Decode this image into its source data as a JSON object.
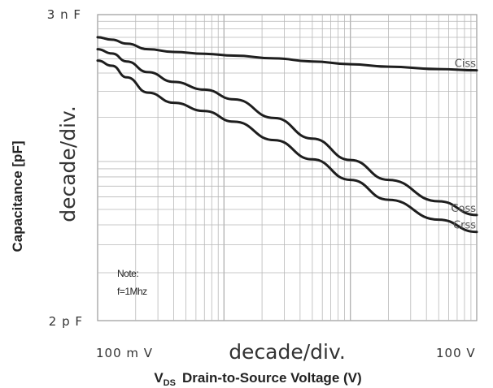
{
  "chart_data": {
    "type": "line",
    "x_scale": "log",
    "y_scale": "log",
    "xlim": [
      0.1,
      100
    ],
    "ylim_labels": {
      "bottom": "2 p F",
      "top": "3 n F"
    },
    "x_tick_labels": [
      "100 m V",
      "100  V"
    ],
    "y_tick_labels": [
      "2 p F",
      "3 n F"
    ],
    "x_division_label": "decade/div.",
    "y_division_label": "decade/div.",
    "xlabel_prefix": "V",
    "xlabel_subscript": "DS",
    "xlabel_text": "Drain-to-Source Voltage (V)",
    "ylabel": "Capacitance [pF]",
    "grid": true,
    "note_lines": [
      "Note:",
      "f=1Mhz"
    ],
    "series": [
      {
        "name": "Ciss",
        "x": [
          0.1,
          0.13,
          0.17,
          0.25,
          0.4,
          0.7,
          1.2,
          2.5,
          5,
          10,
          20,
          50,
          100
        ],
        "y": [
          0.926,
          0.918,
          0.905,
          0.887,
          0.878,
          0.872,
          0.866,
          0.857,
          0.847,
          0.838,
          0.83,
          0.822,
          0.818
        ]
      },
      {
        "name": "Coss",
        "x": [
          0.1,
          0.13,
          0.17,
          0.25,
          0.4,
          0.7,
          1.2,
          2.5,
          5,
          10,
          20,
          50,
          100
        ],
        "y": [
          0.887,
          0.873,
          0.847,
          0.812,
          0.78,
          0.755,
          0.723,
          0.662,
          0.595,
          0.525,
          0.46,
          0.39,
          0.345
        ]
      },
      {
        "name": "Crss",
        "x": [
          0.1,
          0.13,
          0.17,
          0.25,
          0.4,
          0.7,
          1.2,
          2.5,
          5,
          10,
          20,
          50,
          100
        ],
        "y": [
          0.85,
          0.833,
          0.795,
          0.745,
          0.712,
          0.685,
          0.65,
          0.59,
          0.527,
          0.46,
          0.395,
          0.33,
          0.29
        ]
      }
    ]
  }
}
